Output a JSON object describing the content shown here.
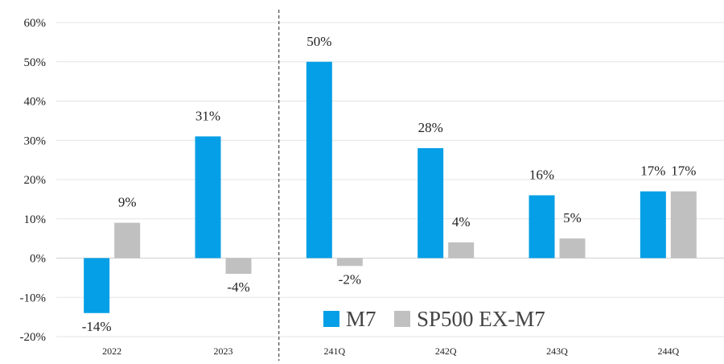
{
  "chart_data": {
    "type": "bar",
    "categories": [
      "2022",
      "2023",
      "241Q",
      "242Q",
      "243Q",
      "244Q"
    ],
    "series": [
      {
        "name": "M7",
        "values": [
          -14,
          31,
          50,
          28,
          16,
          17
        ],
        "labels": [
          "-14%",
          "31%",
          "50%",
          "28%",
          "16%",
          "17%"
        ],
        "color": "#049fe6"
      },
      {
        "name": "SP500 EX-M7",
        "values": [
          9,
          -4,
          -2,
          4,
          5,
          17
        ],
        "labels": [
          "9%",
          "-4%",
          "-2%",
          "4%",
          "5%",
          "17%"
        ],
        "color": "#c0c0c0"
      }
    ],
    "ylim": [
      -20,
      60
    ],
    "y_ticks": [
      60,
      50,
      40,
      30,
      20,
      10,
      0,
      -10,
      -20
    ],
    "y_tick_labels": [
      "60%",
      "50%",
      "40%",
      "30%",
      "20%",
      "10%",
      "0%",
      "-10%",
      "-20%"
    ],
    "grid": true,
    "legend": "bottom-right, inside plot",
    "divider_after_category": "2023"
  }
}
